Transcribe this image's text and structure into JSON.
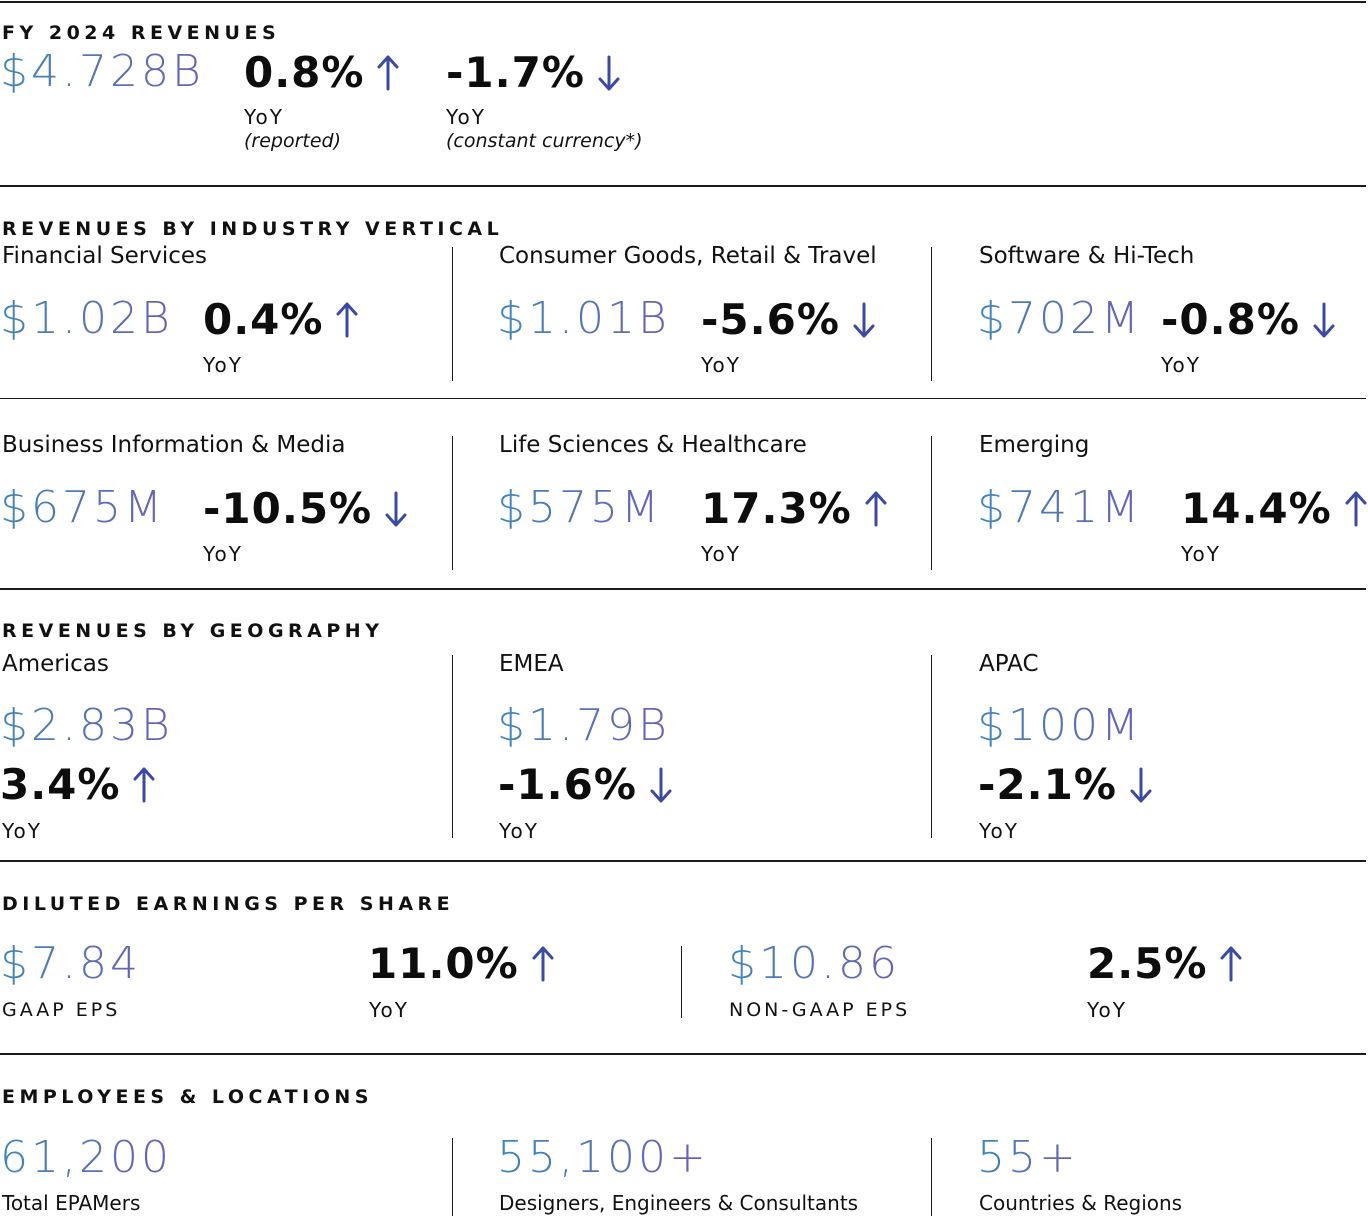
{
  "colors": {
    "value_start": "#3f86b8",
    "value_end": "#6a60b4",
    "arrow": "#3b4aa0",
    "rule": "#1a1a1a"
  },
  "revenues": {
    "heading": "FY 2024 REVENUES",
    "value": "$4.728B",
    "reported": {
      "pct": "0.8%",
      "direction": "up",
      "label": "YoY",
      "note": "(reported)"
    },
    "constant": {
      "pct": "-1.7%",
      "direction": "down",
      "label": "YoY",
      "note": "(constant currency*)"
    }
  },
  "industry": {
    "heading": "REVENUES BY INDUSTRY VERTICAL",
    "items": [
      {
        "name": "Financial Services",
        "value": "$1.02B",
        "pct": "0.4%",
        "direction": "up",
        "yoy": "YoY"
      },
      {
        "name": "Consumer Goods, Retail & Travel",
        "value": "$1.01B",
        "pct": "-5.6%",
        "direction": "down",
        "yoy": "YoY"
      },
      {
        "name": "Software & Hi-Tech",
        "value": "$702M",
        "pct": "-0.8%",
        "direction": "down",
        "yoy": "YoY"
      },
      {
        "name": "Business Information & Media",
        "value": "$675M",
        "pct": "-10.5%",
        "direction": "down",
        "yoy": "YoY"
      },
      {
        "name": "Life Sciences & Healthcare",
        "value": "$575M",
        "pct": "17.3%",
        "direction": "up",
        "yoy": "YoY"
      },
      {
        "name": "Emerging",
        "value": "$741M",
        "pct": "14.4%",
        "direction": "up",
        "yoy": "YoY"
      }
    ]
  },
  "geography": {
    "heading": "REVENUES BY GEOGRAPHY",
    "items": [
      {
        "name": "Americas",
        "value": "$2.83B",
        "pct": "3.4%",
        "direction": "up",
        "yoy": "YoY"
      },
      {
        "name": "EMEA",
        "value": "$1.79B",
        "pct": "-1.6%",
        "direction": "down",
        "yoy": "YoY"
      },
      {
        "name": "APAC",
        "value": "$100M",
        "pct": "-2.1%",
        "direction": "down",
        "yoy": "YoY"
      }
    ]
  },
  "eps": {
    "heading": "DILUTED EARNINGS PER SHARE",
    "gaap": {
      "value": "$7.84",
      "label": "GAAP EPS",
      "pct": "11.0%",
      "direction": "up",
      "yoy": "YoY"
    },
    "non_gaap": {
      "value": "$10.86",
      "label": "NON-GAAP EPS",
      "pct": "2.5%",
      "direction": "up",
      "yoy": "YoY"
    }
  },
  "employees": {
    "heading": "EMPLOYEES & LOCATIONS",
    "items": [
      {
        "value": "61,200",
        "label": "Total EPAMers"
      },
      {
        "value": "55,100+",
        "label": "Designers, Engineers & Consultants"
      },
      {
        "value": "55+",
        "label": "Countries & Regions"
      }
    ]
  }
}
